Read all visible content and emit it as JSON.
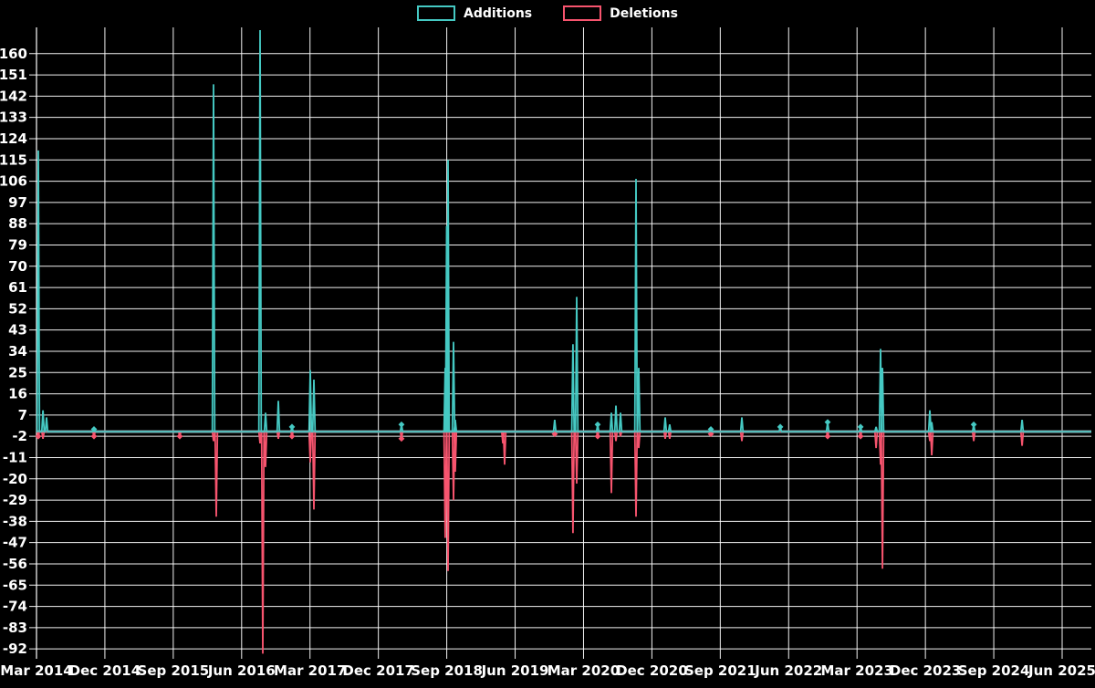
{
  "chart_data": {
    "type": "line",
    "title": "",
    "xlabel": "",
    "ylabel": "",
    "background_color": "#000000",
    "grid": true,
    "grid_color": "#ffffff",
    "zero_line_color": "#8ba0a6",
    "ylim": [
      -94,
      170
    ],
    "y_ticks": [
      160,
      151,
      142,
      133,
      124,
      115,
      106,
      97,
      88,
      79,
      70,
      61,
      52,
      43,
      34,
      25,
      16,
      7,
      -2,
      -11,
      -20,
      -29,
      -38,
      -47,
      -56,
      -65,
      -74,
      -83,
      -92
    ],
    "x_tick_labels": [
      "Mar 2014",
      "Dec 2014",
      "Sep 2015",
      "Jun 2016",
      "Mar 2017",
      "Dec 2017",
      "Sep 2018",
      "Jun 2019",
      "Mar 2020",
      "Dec 2020",
      "Sep 2021",
      "Jun 2022",
      "Mar 2023",
      "Dec 2023",
      "Sep 2024",
      "Jun 2025"
    ],
    "legend": [
      {
        "name": "Additions",
        "color": "#45c9c3"
      },
      {
        "name": "Deletions",
        "color": "#f7546e"
      }
    ],
    "legend_position": "top-center",
    "series": [
      {
        "name": "Additions",
        "color": "#45c9c3",
        "points": [
          {
            "date": "2014-03",
            "t": 0.0017,
            "v": 119
          },
          {
            "date": "2014-03",
            "t": 0.0061,
            "v": 9
          },
          {
            "date": "2014-04",
            "t": 0.0095,
            "v": 6
          },
          {
            "date": "2014-11",
            "t": 0.0545,
            "v": 1,
            "m": true
          },
          {
            "date": "2016-02",
            "t": 0.1678,
            "v": 147
          },
          {
            "date": "2016-08",
            "t": 0.2119,
            "v": 170,
            "clipped": true
          },
          {
            "date": "2016-09",
            "t": 0.2171,
            "v": 8
          },
          {
            "date": "2016-11",
            "t": 0.2292,
            "v": 13
          },
          {
            "date": "2016-12",
            "t": 0.2422,
            "v": 2,
            "m": true
          },
          {
            "date": "2017-03",
            "t": 0.2595,
            "v": 26
          },
          {
            "date": "2017-03",
            "t": 0.263,
            "v": 22
          },
          {
            "date": "2018-03",
            "t": 0.346,
            "v": 3,
            "m": true
          },
          {
            "date": "2018-08",
            "t": 0.3875,
            "v": 27
          },
          {
            "date": "2018-09",
            "t": 0.3888,
            "v": 87
          },
          {
            "date": "2018-09",
            "t": 0.3901,
            "v": 115
          },
          {
            "date": "2018-09",
            "t": 0.3953,
            "v": 38
          },
          {
            "date": "2018-10",
            "t": 0.397,
            "v": 5
          },
          {
            "date": "2019-11",
            "t": 0.4913,
            "v": 5
          },
          {
            "date": "2020-02",
            "t": 0.5086,
            "v": 37
          },
          {
            "date": "2020-03",
            "t": 0.5121,
            "v": 57
          },
          {
            "date": "2020-05",
            "t": 0.532,
            "v": 3,
            "m": true
          },
          {
            "date": "2020-07",
            "t": 0.545,
            "v": 8
          },
          {
            "date": "2020-08",
            "t": 0.5493,
            "v": 11
          },
          {
            "date": "2020-08",
            "t": 0.5536,
            "v": 8
          },
          {
            "date": "2020-10",
            "t": 0.5683,
            "v": 107
          },
          {
            "date": "2020-10",
            "t": 0.5709,
            "v": 27
          },
          {
            "date": "2021-01",
            "t": 0.596,
            "v": 6
          },
          {
            "date": "2021-01",
            "t": 0.6003,
            "v": 3
          },
          {
            "date": "2021-07",
            "t": 0.6393,
            "v": 1,
            "m": true
          },
          {
            "date": "2021-11",
            "t": 0.6687,
            "v": 6
          },
          {
            "date": "2022-04",
            "t": 0.7051,
            "v": 2,
            "m": true
          },
          {
            "date": "2022-11",
            "t": 0.75,
            "v": 4,
            "m": true
          },
          {
            "date": "2023-03",
            "t": 0.7812,
            "v": 2,
            "m": true
          },
          {
            "date": "2023-06",
            "t": 0.7959,
            "v": 2
          },
          {
            "date": "2023-06",
            "t": 0.8002,
            "v": 35
          },
          {
            "date": "2023-06",
            "t": 0.802,
            "v": 27
          },
          {
            "date": "2023-12",
            "t": 0.8469,
            "v": 9
          },
          {
            "date": "2023-12",
            "t": 0.8487,
            "v": 4
          },
          {
            "date": "2024-06",
            "t": 0.8885,
            "v": 3,
            "m": true
          },
          {
            "date": "2025-01",
            "t": 0.9343,
            "v": 5
          }
        ]
      },
      {
        "name": "Deletions",
        "color": "#f7546e",
        "points": [
          {
            "date": "2014-03",
            "t": 0.0017,
            "v": -2,
            "m": true
          },
          {
            "date": "2014-03",
            "t": 0.0061,
            "v": -3
          },
          {
            "date": "2014-11",
            "t": 0.0545,
            "v": -2,
            "m": true
          },
          {
            "date": "2015-10",
            "t": 0.1358,
            "v": -2,
            "m": true
          },
          {
            "date": "2016-02",
            "t": 0.1678,
            "v": -4
          },
          {
            "date": "2016-03",
            "t": 0.1704,
            "v": -36
          },
          {
            "date": "2016-08",
            "t": 0.2119,
            "v": -5
          },
          {
            "date": "2016-08",
            "t": 0.2145,
            "v": -94
          },
          {
            "date": "2016-09",
            "t": 0.2171,
            "v": -15
          },
          {
            "date": "2016-11",
            "t": 0.2292,
            "v": -3
          },
          {
            "date": "2016-12",
            "t": 0.2422,
            "v": -2,
            "m": true
          },
          {
            "date": "2017-03",
            "t": 0.2595,
            "v": -13
          },
          {
            "date": "2017-03",
            "t": 0.263,
            "v": -33
          },
          {
            "date": "2018-03",
            "t": 0.346,
            "v": -3,
            "m": true
          },
          {
            "date": "2018-08",
            "t": 0.3875,
            "v": -45
          },
          {
            "date": "2018-09",
            "t": 0.3901,
            "v": -59
          },
          {
            "date": "2018-09",
            "t": 0.3953,
            "v": -29
          },
          {
            "date": "2018-10",
            "t": 0.397,
            "v": -17
          },
          {
            "date": "2019-04",
            "t": 0.4421,
            "v": -5
          },
          {
            "date": "2019-04",
            "t": 0.4438,
            "v": -14
          },
          {
            "date": "2019-11",
            "t": 0.4913,
            "v": -1,
            "m": true
          },
          {
            "date": "2020-02",
            "t": 0.5086,
            "v": -43
          },
          {
            "date": "2020-03",
            "t": 0.5121,
            "v": -22
          },
          {
            "date": "2020-05",
            "t": 0.532,
            "v": -2,
            "m": true
          },
          {
            "date": "2020-07",
            "t": 0.545,
            "v": -26
          },
          {
            "date": "2020-08",
            "t": 0.5493,
            "v": -4
          },
          {
            "date": "2020-08",
            "t": 0.5536,
            "v": -2
          },
          {
            "date": "2020-10",
            "t": 0.5683,
            "v": -36
          },
          {
            "date": "2020-10",
            "t": 0.5709,
            "v": -7
          },
          {
            "date": "2021-01",
            "t": 0.596,
            "v": -3
          },
          {
            "date": "2021-01",
            "t": 0.6003,
            "v": -3
          },
          {
            "date": "2021-07",
            "t": 0.6393,
            "v": -1,
            "m": true
          },
          {
            "date": "2021-11",
            "t": 0.6687,
            "v": -4
          },
          {
            "date": "2022-11",
            "t": 0.75,
            "v": -2,
            "m": true
          },
          {
            "date": "2023-03",
            "t": 0.7812,
            "v": -2,
            "m": true
          },
          {
            "date": "2023-06",
            "t": 0.7959,
            "v": -7
          },
          {
            "date": "2023-06",
            "t": 0.8002,
            "v": -14
          },
          {
            "date": "2023-06",
            "t": 0.802,
            "v": -58
          },
          {
            "date": "2023-12",
            "t": 0.8469,
            "v": -4
          },
          {
            "date": "2023-12",
            "t": 0.8487,
            "v": -10
          },
          {
            "date": "2024-06",
            "t": 0.8885,
            "v": -4
          },
          {
            "date": "2025-01",
            "t": 0.9343,
            "v": -6
          }
        ]
      }
    ]
  }
}
